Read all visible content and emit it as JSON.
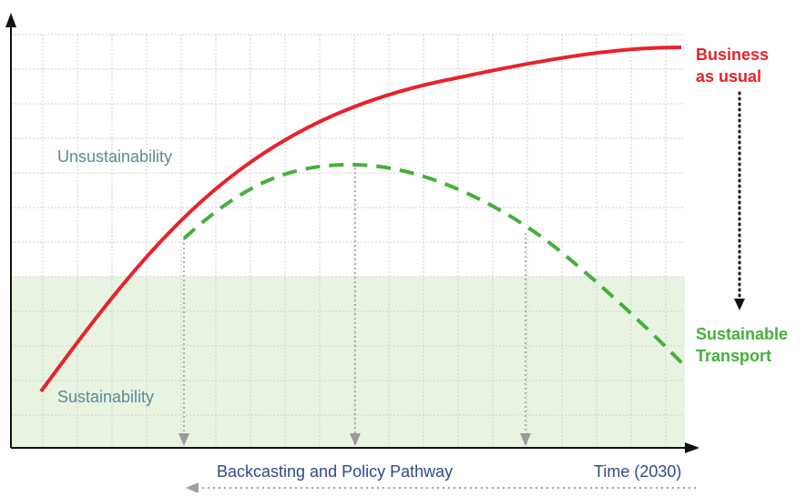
{
  "zones": {
    "upper_label": "Unsustainability",
    "lower_label": "Sustainability"
  },
  "curves": {
    "business_as_usual": {
      "line1": "Business",
      "line2": "as usual",
      "color": "#e8232a"
    },
    "sustainable_transport": {
      "line1": "Sustainable",
      "line2": "Transport",
      "color": "#45b03c"
    }
  },
  "axis": {
    "time_label": "Time (2030)",
    "pathway_label": "Backcasting and Policy Pathway"
  },
  "colors": {
    "sustainability_zone": "#e9f3e2",
    "grid": "#cfcfcf",
    "axis": "#111111",
    "drop_arrows": "#9a9a9a"
  }
}
